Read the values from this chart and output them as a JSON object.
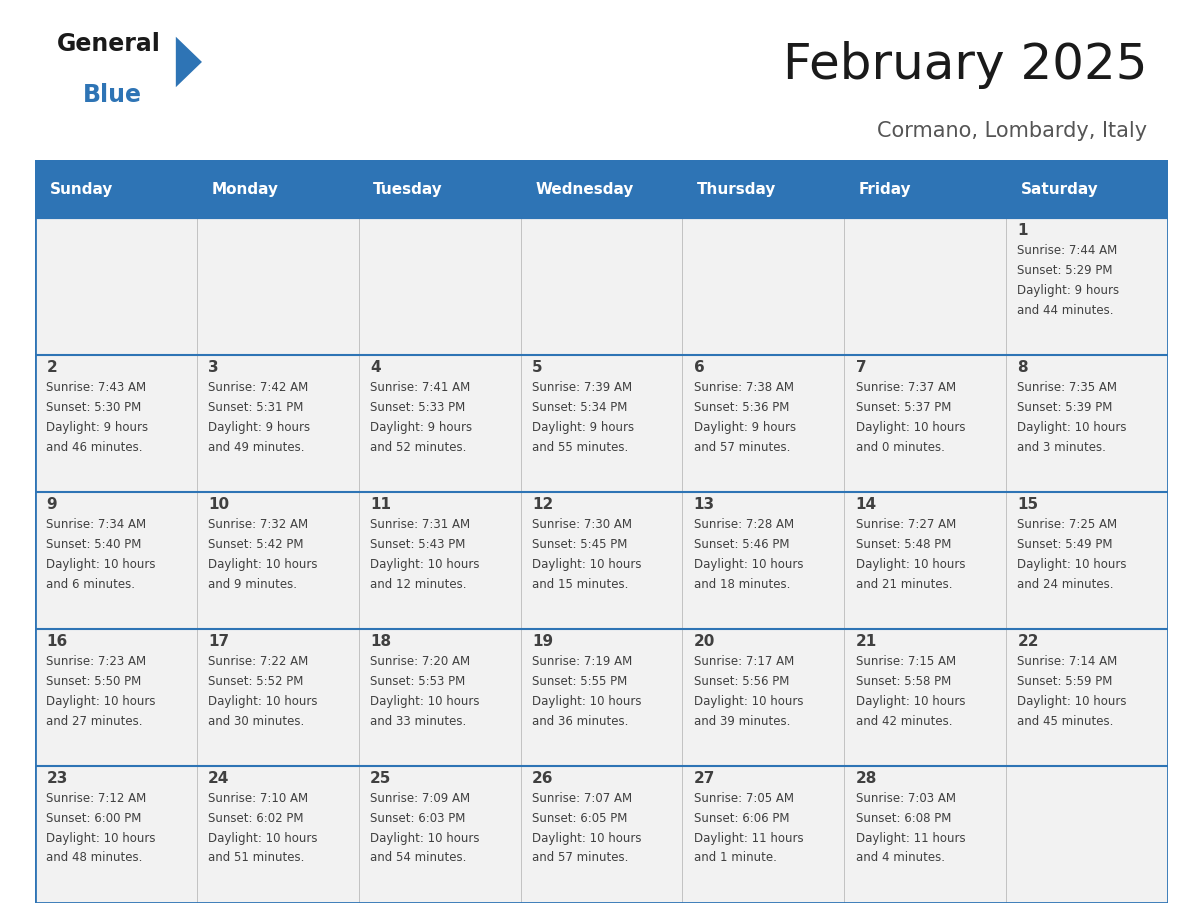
{
  "title": "February 2025",
  "subtitle": "Cormano, Lombardy, Italy",
  "header_bg": "#2E74B5",
  "header_text_color": "#FFFFFF",
  "cell_bg": "#F2F2F2",
  "border_color": "#2E74B5",
  "text_color": "#404040",
  "days_of_week": [
    "Sunday",
    "Monday",
    "Tuesday",
    "Wednesday",
    "Thursday",
    "Friday",
    "Saturday"
  ],
  "weeks": [
    [
      {
        "day": null,
        "sunrise": null,
        "sunset": null,
        "daylight": null
      },
      {
        "day": null,
        "sunrise": null,
        "sunset": null,
        "daylight": null
      },
      {
        "day": null,
        "sunrise": null,
        "sunset": null,
        "daylight": null
      },
      {
        "day": null,
        "sunrise": null,
        "sunset": null,
        "daylight": null
      },
      {
        "day": null,
        "sunrise": null,
        "sunset": null,
        "daylight": null
      },
      {
        "day": null,
        "sunrise": null,
        "sunset": null,
        "daylight": null
      },
      {
        "day": 1,
        "sunrise": "7:44 AM",
        "sunset": "5:29 PM",
        "daylight": "9 hours\nand 44 minutes."
      }
    ],
    [
      {
        "day": 2,
        "sunrise": "7:43 AM",
        "sunset": "5:30 PM",
        "daylight": "9 hours\nand 46 minutes."
      },
      {
        "day": 3,
        "sunrise": "7:42 AM",
        "sunset": "5:31 PM",
        "daylight": "9 hours\nand 49 minutes."
      },
      {
        "day": 4,
        "sunrise": "7:41 AM",
        "sunset": "5:33 PM",
        "daylight": "9 hours\nand 52 minutes."
      },
      {
        "day": 5,
        "sunrise": "7:39 AM",
        "sunset": "5:34 PM",
        "daylight": "9 hours\nand 55 minutes."
      },
      {
        "day": 6,
        "sunrise": "7:38 AM",
        "sunset": "5:36 PM",
        "daylight": "9 hours\nand 57 minutes."
      },
      {
        "day": 7,
        "sunrise": "7:37 AM",
        "sunset": "5:37 PM",
        "daylight": "10 hours\nand 0 minutes."
      },
      {
        "day": 8,
        "sunrise": "7:35 AM",
        "sunset": "5:39 PM",
        "daylight": "10 hours\nand 3 minutes."
      }
    ],
    [
      {
        "day": 9,
        "sunrise": "7:34 AM",
        "sunset": "5:40 PM",
        "daylight": "10 hours\nand 6 minutes."
      },
      {
        "day": 10,
        "sunrise": "7:32 AM",
        "sunset": "5:42 PM",
        "daylight": "10 hours\nand 9 minutes."
      },
      {
        "day": 11,
        "sunrise": "7:31 AM",
        "sunset": "5:43 PM",
        "daylight": "10 hours\nand 12 minutes."
      },
      {
        "day": 12,
        "sunrise": "7:30 AM",
        "sunset": "5:45 PM",
        "daylight": "10 hours\nand 15 minutes."
      },
      {
        "day": 13,
        "sunrise": "7:28 AM",
        "sunset": "5:46 PM",
        "daylight": "10 hours\nand 18 minutes."
      },
      {
        "day": 14,
        "sunrise": "7:27 AM",
        "sunset": "5:48 PM",
        "daylight": "10 hours\nand 21 minutes."
      },
      {
        "day": 15,
        "sunrise": "7:25 AM",
        "sunset": "5:49 PM",
        "daylight": "10 hours\nand 24 minutes."
      }
    ],
    [
      {
        "day": 16,
        "sunrise": "7:23 AM",
        "sunset": "5:50 PM",
        "daylight": "10 hours\nand 27 minutes."
      },
      {
        "day": 17,
        "sunrise": "7:22 AM",
        "sunset": "5:52 PM",
        "daylight": "10 hours\nand 30 minutes."
      },
      {
        "day": 18,
        "sunrise": "7:20 AM",
        "sunset": "5:53 PM",
        "daylight": "10 hours\nand 33 minutes."
      },
      {
        "day": 19,
        "sunrise": "7:19 AM",
        "sunset": "5:55 PM",
        "daylight": "10 hours\nand 36 minutes."
      },
      {
        "day": 20,
        "sunrise": "7:17 AM",
        "sunset": "5:56 PM",
        "daylight": "10 hours\nand 39 minutes."
      },
      {
        "day": 21,
        "sunrise": "7:15 AM",
        "sunset": "5:58 PM",
        "daylight": "10 hours\nand 42 minutes."
      },
      {
        "day": 22,
        "sunrise": "7:14 AM",
        "sunset": "5:59 PM",
        "daylight": "10 hours\nand 45 minutes."
      }
    ],
    [
      {
        "day": 23,
        "sunrise": "7:12 AM",
        "sunset": "6:00 PM",
        "daylight": "10 hours\nand 48 minutes."
      },
      {
        "day": 24,
        "sunrise": "7:10 AM",
        "sunset": "6:02 PM",
        "daylight": "10 hours\nand 51 minutes."
      },
      {
        "day": 25,
        "sunrise": "7:09 AM",
        "sunset": "6:03 PM",
        "daylight": "10 hours\nand 54 minutes."
      },
      {
        "day": 26,
        "sunrise": "7:07 AM",
        "sunset": "6:05 PM",
        "daylight": "10 hours\nand 57 minutes."
      },
      {
        "day": 27,
        "sunrise": "7:05 AM",
        "sunset": "6:06 PM",
        "daylight": "11 hours\nand 1 minute."
      },
      {
        "day": 28,
        "sunrise": "7:03 AM",
        "sunset": "6:08 PM",
        "daylight": "11 hours\nand 4 minutes."
      },
      {
        "day": null,
        "sunrise": null,
        "sunset": null,
        "daylight": null
      }
    ]
  ],
  "fig_width": 11.88,
  "fig_height": 9.18,
  "logo_general_color": "#1A1A1A",
  "logo_blue_color": "#2E74B5",
  "logo_triangle_color": "#2E74B5",
  "title_fontsize": 36,
  "subtitle_fontsize": 15,
  "header_fontsize": 11,
  "day_num_fontsize": 11,
  "cell_text_fontsize": 8.5
}
